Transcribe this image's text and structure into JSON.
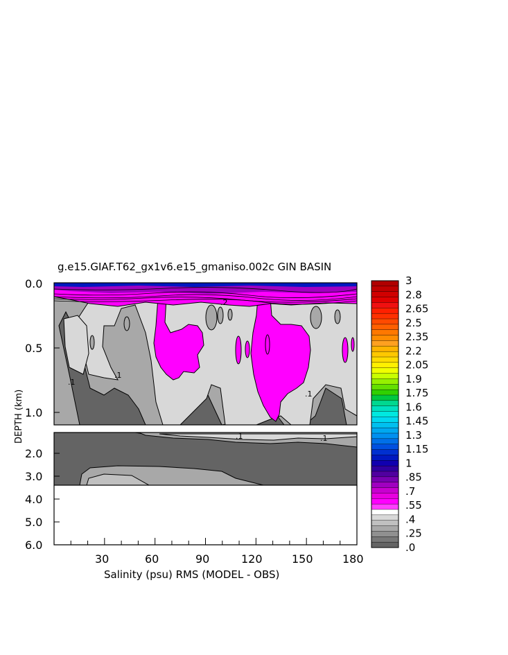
{
  "chart_data": {
    "type": "heatmap",
    "title": "g.e15.GIAF.T62_gx1v6.e15_gmaniso.002c GIN BASIN",
    "xlabel": "Salinity (psu) RMS (MODEL - OBS)",
    "ylabel": "DEPTH (km)",
    "x_ticks": [
      "30",
      "60",
      "90",
      "120",
      "150",
      "180"
    ],
    "x_range": [
      0,
      180
    ],
    "upper_panel": {
      "ylim": [
        0,
        1.1
      ],
      "y_ticks": [
        "0.0",
        "0.5",
        "1.0"
      ]
    },
    "lower_panel": {
      "ylim": [
        1.1,
        6.0
      ],
      "y_ticks": [
        "2.0",
        "3.0",
        "4.0",
        "5.0",
        "6.0"
      ]
    },
    "contour_labels": [
      ".2",
      ".1",
      ".1",
      ".1",
      ".1",
      ".1"
    ],
    "colorbar": {
      "labels": [
        "3",
        "2.8",
        "2.65",
        "2.5",
        "2.35",
        "2.2",
        "2.05",
        "1.9",
        "1.75",
        "1.6",
        "1.45",
        "1.3",
        "1.15",
        "1",
        ".85",
        ".7",
        ".55",
        ".4",
        ".25",
        ".0"
      ],
      "colors": [
        "#b00000",
        "#c00000",
        "#d00000",
        "#e00000",
        "#f01010",
        "#ff2000",
        "#ff3000",
        "#ff4a00",
        "#ff6000",
        "#ff7800",
        "#ff8c00",
        "#ffa020",
        "#ffb400",
        "#ffc800",
        "#ffdc00",
        "#fff000",
        "#f0ff00",
        "#c8ff00",
        "#96f000",
        "#64e000",
        "#30d000",
        "#00c840",
        "#00d890",
        "#00e0c0",
        "#00e8e0",
        "#00d8f0",
        "#00c0f0",
        "#00a8f0",
        "#0090f0",
        "#0070e8",
        "#0050e0",
        "#0030d0",
        "#0018c0",
        "#1000b0",
        "#3000a0",
        "#5000a0",
        "#7800b0",
        "#a000c0",
        "#c800d0",
        "#e800e0",
        "#ff00ff",
        "#ff40ff",
        "#ffffff",
        "#d8d8d8",
        "#c0c0c0",
        "#a8a8a8",
        "#909090",
        "#787878",
        "#646464"
      ]
    }
  }
}
